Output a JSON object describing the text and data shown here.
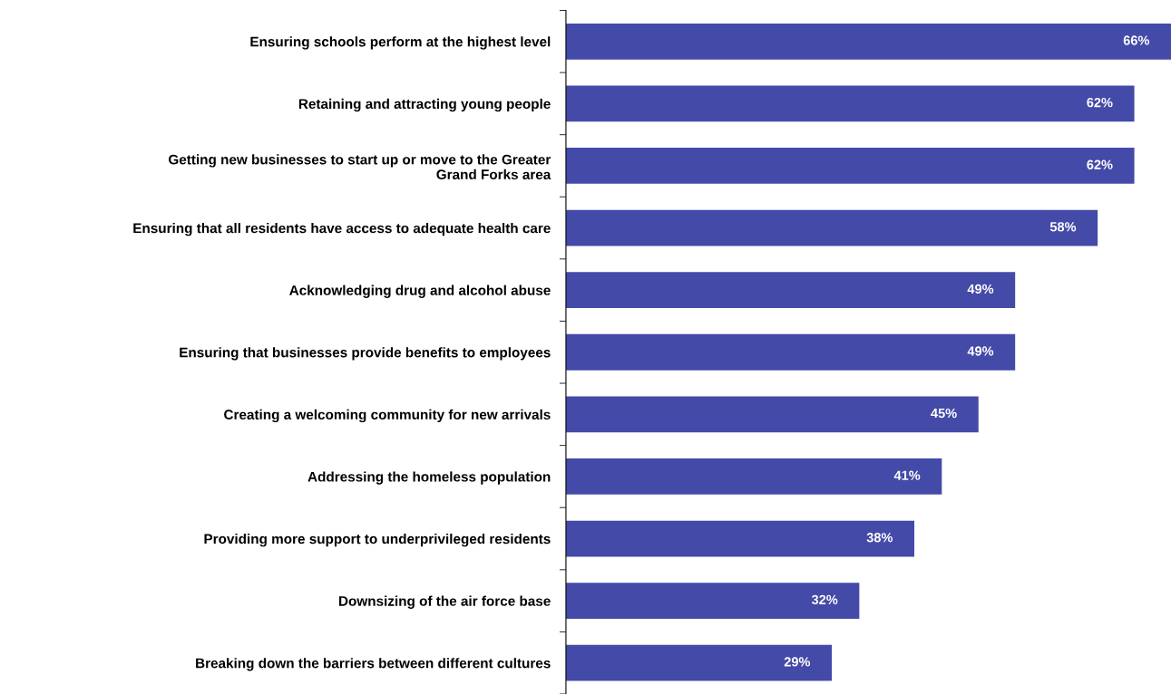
{
  "chart_data": {
    "type": "bar",
    "orientation": "horizontal",
    "categories": [
      "Ensuring schools perform at the highest level",
      "Retaining and attracting young people",
      "Getting new businesses to start up or move to the Greater\nGrand Forks area",
      "Ensuring that all residents have access to adequate health care",
      "Acknowledging drug and alcohol abuse",
      "Ensuring that businesses provide benefits to employees",
      "Creating a welcoming community for new arrivals",
      "Addressing the homeless population",
      "Providing more support to underprivileged residents",
      "Downsizing of the air force base",
      "Breaking down the barriers between different cultures"
    ],
    "values": [
      66,
      62,
      62,
      58,
      49,
      49,
      45,
      41,
      38,
      32,
      29
    ],
    "value_labels": [
      "66%",
      "62%",
      "62%",
      "58%",
      "49%",
      "49%",
      "45%",
      "41%",
      "38%",
      "32%",
      "29%"
    ],
    "color": "#444aa8",
    "xlim": [
      0,
      66
    ],
    "tick_labels": "y",
    "grid": false,
    "legend": false
  }
}
